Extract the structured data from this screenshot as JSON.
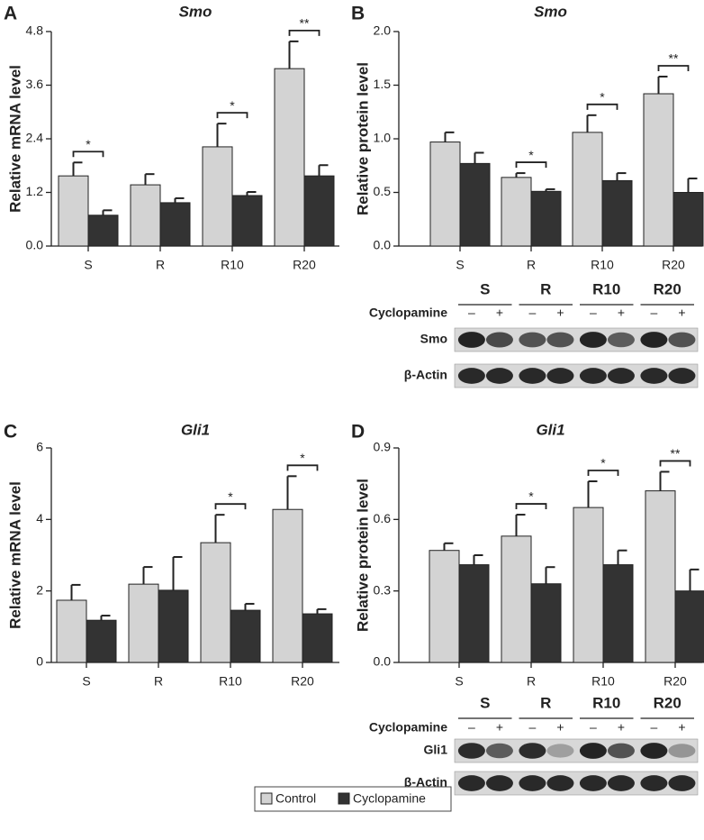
{
  "chart_data": [
    {
      "type": "bar",
      "panel_label": "A",
      "title": "Smo",
      "ylabel": "Relative mRNA level",
      "categories": [
        "S",
        "R",
        "R10",
        "R20"
      ],
      "series": [
        {
          "name": "Control",
          "color": "#d3d3d3",
          "values": [
            1.57,
            1.37,
            2.22,
            3.97
          ],
          "errors": [
            0.3,
            0.24,
            0.52,
            0.61
          ]
        },
        {
          "name": "Cyclopamine",
          "color": "#333333",
          "values": [
            0.69,
            0.97,
            1.13,
            1.57
          ],
          "errors": [
            0.11,
            0.1,
            0.08,
            0.24
          ]
        }
      ],
      "annotations": [
        "*",
        null,
        "*",
        "**"
      ],
      "ylim": [
        0,
        4.8
      ],
      "yticks": [
        {
          "value": 0,
          "label": "0.0"
        },
        1.2,
        2.4,
        3.6,
        4.8
      ]
    },
    {
      "type": "bar",
      "panel_label": "B",
      "title": "Smo",
      "ylabel": "Relative protein level",
      "categories": [
        "S",
        "R",
        "R10",
        "R20"
      ],
      "series": [
        {
          "color": "#d3d3d3",
          "values": [
            0.97,
            0.64,
            1.06,
            1.42
          ],
          "errors": [
            0.09,
            0.04,
            0.16,
            0.16
          ]
        },
        {
          "color": "#333333",
          "values": [
            0.77,
            0.51,
            0.61,
            0.5
          ],
          "errors": [
            0.1,
            0.02,
            0.07,
            0.13
          ]
        }
      ],
      "annotations": [
        null,
        "*",
        "*",
        "**"
      ],
      "ylim": [
        0,
        2
      ],
      "yticks": [
        {
          "value": 0,
          "label": "0.0"
        },
        0.5,
        {
          "value": 1,
          "label": "1.0"
        },
        1.5,
        {
          "value": 2,
          "label": "2.0"
        }
      ]
    },
    {
      "type": "bar",
      "panel_label": "C",
      "title": "Gli1",
      "ylabel": "Relative mRNA level",
      "categories": [
        "S",
        "R",
        "R10",
        "R20"
      ],
      "series": [
        {
          "color": "#d3d3d3",
          "values": [
            1.74,
            2.19,
            3.35,
            4.28
          ],
          "errors": [
            0.43,
            0.48,
            0.78,
            0.93
          ]
        },
        {
          "color": "#333333",
          "values": [
            1.18,
            2.02,
            1.46,
            1.36
          ],
          "errors": [
            0.13,
            0.93,
            0.18,
            0.13
          ]
        }
      ],
      "annotations": [
        null,
        null,
        "*",
        "*"
      ],
      "ylim": [
        0,
        6
      ],
      "yticks": [
        0,
        2,
        4,
        6
      ]
    },
    {
      "type": "bar",
      "panel_label": "D",
      "title": "Gli1",
      "ylabel": "Relative protein level",
      "categories": [
        "S",
        "R",
        "R10",
        "R20"
      ],
      "series": [
        {
          "color": "#d3d3d3",
          "values": [
            0.47,
            0.53,
            0.65,
            0.72
          ],
          "errors": [
            0.03,
            0.09,
            0.11,
            0.08
          ]
        },
        {
          "color": "#333333",
          "values": [
            0.41,
            0.33,
            0.41,
            0.3
          ],
          "errors": [
            0.04,
            0.07,
            0.06,
            0.09
          ]
        }
      ],
      "annotations": [
        null,
        "*",
        "*",
        "**"
      ],
      "ylim": [
        0,
        0.9
      ],
      "yticks": [
        {
          "value": 0,
          "label": "0.0"
        },
        0.3,
        0.6,
        0.9
      ]
    }
  ],
  "blots": [
    {
      "treatment_label": "Cyclopamine",
      "signs": [
        "–",
        "+"
      ],
      "rows": [
        "Smo",
        "β-Actin"
      ]
    },
    {
      "treatment_label": "Cyclopamine",
      "signs": [
        "–",
        "+"
      ],
      "rows": [
        "Gli1",
        "β-Actin"
      ]
    }
  ]
}
